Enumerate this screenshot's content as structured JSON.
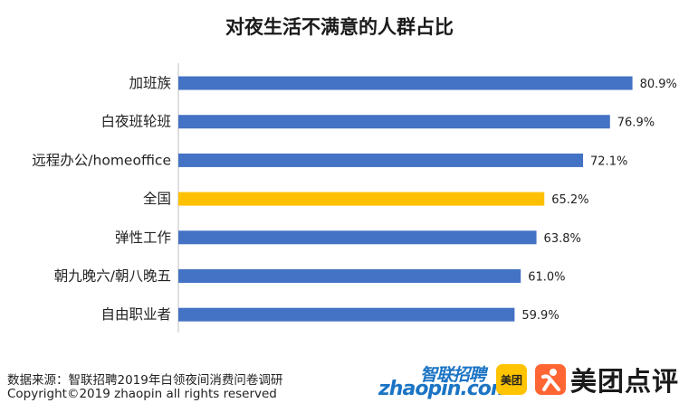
{
  "chart_data": {
    "type": "bar",
    "orientation": "horizontal",
    "title": "对夜生活不满意的人群占比",
    "categories": [
      "加班族",
      "白夜班轮班",
      "远程办公/homeoffice",
      "全国",
      "弹性工作",
      "朝九晚六/朝八晚五",
      "自由职业者"
    ],
    "values": [
      80.9,
      76.9,
      72.1,
      65.2,
      63.8,
      61.0,
      59.9
    ],
    "value_labels": [
      "80.9%",
      "76.9%",
      "72.1%",
      "65.2%",
      "63.8%",
      "61.0%",
      "59.9%"
    ],
    "unit": "%",
    "xlim": [
      0,
      100
    ],
    "grid": false,
    "highlight_category": "全国",
    "colors": {
      "default": "#4472c4",
      "highlight": "#ffc000"
    }
  },
  "footer": {
    "source": "数据来源：智联招聘2019年白领夜间消费问卷调研",
    "copyright": "Copyright©2019 zhaopin all rights reserved"
  },
  "logos": {
    "zhaopin_cn": "智联招聘",
    "zhaopin_en": "zhaopin.com",
    "meituan": "美团",
    "meituan_dianping": "美团点评"
  }
}
